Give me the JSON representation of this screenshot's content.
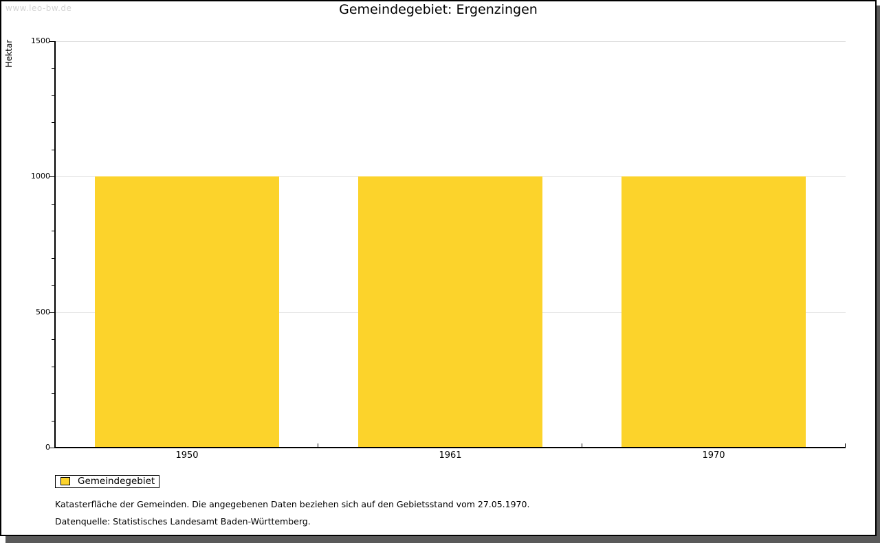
{
  "watermark": "www.leo-bw.de",
  "header": {
    "title": "Gemeindegebiet: Ergenzingen"
  },
  "legend": {
    "label": "Gemeindegebiet"
  },
  "footnotes": [
    "Katasterfläche der Gemeinden. Die angegebenen Daten beziehen sich auf den Gebietsstand vom 27.05.1970.",
    "Datenquelle: Statistisches Landesamt Baden-Württemberg."
  ],
  "colors": {
    "bar": "#fcd32b",
    "grid": "#e0e0e0",
    "axis": "#000000",
    "shadow": "#5a5a5a",
    "watermark": "#d3d3d3"
  },
  "chart_data": {
    "type": "bar",
    "title": "Gemeindegebiet: Ergenzingen",
    "categories": [
      "1950",
      "1961",
      "1970"
    ],
    "series": [
      {
        "name": "Gemeindegebiet",
        "values": [
          1000,
          1000,
          1000
        ],
        "color": "#fcd32b"
      }
    ],
    "xlabel": "",
    "ylabel": "Hektar",
    "ylim": [
      0,
      1500
    ],
    "y_major_tick": 500,
    "y_minor_tick": 100,
    "grid": "horizontal-major-lines",
    "legend_position": "below-plot-left",
    "bar_value_unit": "Hektar"
  }
}
